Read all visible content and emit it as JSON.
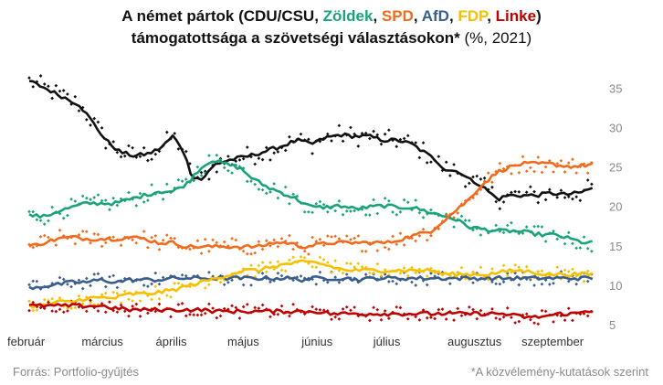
{
  "title": {
    "line1_prefix": "A német pártok (",
    "line1_sep": ", ",
    "line1_suffix": ")",
    "line2_bold": "támogatottsága a szövetségi választásokon*",
    "line2_light": " (%, 2021)",
    "parties": [
      {
        "label": "CDU/CSU",
        "color": "#111111"
      },
      {
        "label": "Zöldek",
        "color": "#1aa37a"
      },
      {
        "label": "SPD",
        "color": "#f26b1d"
      },
      {
        "label": "AfD",
        "color": "#3a5e8c"
      },
      {
        "label": "FDP",
        "color": "#f5c000"
      },
      {
        "label": "Linke",
        "color": "#c00000"
      }
    ]
  },
  "footer": {
    "source": "Forrás: Portfolio-gyűjtés",
    "note": "*A közvélemény-kutatások szerint"
  },
  "chart_data": {
    "type": "line",
    "x_unit": "days since 2021-02-01",
    "xlim": [
      0,
      236
    ],
    "ylim": [
      5,
      37
    ],
    "yticks": [
      5,
      10,
      15,
      20,
      25,
      30,
      35
    ],
    "x_ticks": [
      {
        "label": "február",
        "x": 0
      },
      {
        "label": "március",
        "x": 28
      },
      {
        "label": "április",
        "x": 59
      },
      {
        "label": "május",
        "x": 89
      },
      {
        "label": "június",
        "x": 120
      },
      {
        "label": "július",
        "x": 150
      },
      {
        "label": "augusztus",
        "x": 181
      },
      {
        "label": "szeptember",
        "x": 212
      }
    ],
    "grid": false,
    "series": [
      {
        "name": "CDU/CSU",
        "color": "#111111",
        "points": [
          [
            0,
            36.0
          ],
          [
            6,
            35.2
          ],
          [
            14,
            34.0
          ],
          [
            21,
            33.0
          ],
          [
            26,
            31.0
          ],
          [
            32,
            28.5
          ],
          [
            38,
            27.0
          ],
          [
            44,
            26.5
          ],
          [
            50,
            26.8
          ],
          [
            55,
            27.5
          ],
          [
            60,
            29.0
          ],
          [
            64,
            27.5
          ],
          [
            68,
            24.0
          ],
          [
            72,
            23.5
          ],
          [
            78,
            25.5
          ],
          [
            84,
            26.0
          ],
          [
            92,
            26.5
          ],
          [
            100,
            27.2
          ],
          [
            106,
            27.8
          ],
          [
            112,
            28.5
          ],
          [
            118,
            28.0
          ],
          [
            124,
            28.8
          ],
          [
            130,
            29.2
          ],
          [
            136,
            29.0
          ],
          [
            142,
            29.0
          ],
          [
            148,
            28.5
          ],
          [
            154,
            28.5
          ],
          [
            160,
            28.0
          ],
          [
            164,
            27.2
          ],
          [
            170,
            26.0
          ],
          [
            174,
            24.8
          ],
          [
            180,
            24.5
          ],
          [
            184,
            23.5
          ],
          [
            188,
            23.0
          ],
          [
            192,
            22.0
          ],
          [
            196,
            21.0
          ],
          [
            200,
            21.5
          ],
          [
            206,
            21.5
          ],
          [
            212,
            21.5
          ],
          [
            218,
            21.8
          ],
          [
            224,
            21.6
          ],
          [
            230,
            21.8
          ],
          [
            236,
            22.5
          ]
        ]
      },
      {
        "name": "Zöldek",
        "color": "#1aa37a",
        "points": [
          [
            0,
            19.0
          ],
          [
            6,
            18.8
          ],
          [
            12,
            19.5
          ],
          [
            18,
            20.0
          ],
          [
            24,
            20.5
          ],
          [
            30,
            20.5
          ],
          [
            36,
            20.5
          ],
          [
            42,
            21.0
          ],
          [
            48,
            21.5
          ],
          [
            54,
            22.0
          ],
          [
            60,
            22.0
          ],
          [
            66,
            23.0
          ],
          [
            70,
            24.5
          ],
          [
            76,
            26.0
          ],
          [
            82,
            25.5
          ],
          [
            88,
            25.0
          ],
          [
            94,
            23.5
          ],
          [
            100,
            22.5
          ],
          [
            106,
            21.8
          ],
          [
            112,
            21.0
          ],
          [
            118,
            20.0
          ],
          [
            124,
            20.0
          ],
          [
            130,
            20.2
          ],
          [
            136,
            19.8
          ],
          [
            142,
            20.0
          ],
          [
            148,
            20.2
          ],
          [
            154,
            20.0
          ],
          [
            160,
            20.0
          ],
          [
            166,
            19.5
          ],
          [
            172,
            19.0
          ],
          [
            178,
            18.5
          ],
          [
            184,
            17.5
          ],
          [
            190,
            17.2
          ],
          [
            196,
            17.0
          ],
          [
            202,
            17.0
          ],
          [
            208,
            16.8
          ],
          [
            214,
            16.5
          ],
          [
            220,
            16.5
          ],
          [
            226,
            16.0
          ],
          [
            232,
            15.5
          ],
          [
            236,
            15.5
          ]
        ]
      },
      {
        "name": "SPD",
        "color": "#f26b1d",
        "points": [
          [
            0,
            15.0
          ],
          [
            6,
            15.5
          ],
          [
            12,
            16.0
          ],
          [
            18,
            16.2
          ],
          [
            24,
            16.0
          ],
          [
            30,
            16.0
          ],
          [
            36,
            16.0
          ],
          [
            42,
            16.2
          ],
          [
            48,
            16.0
          ],
          [
            54,
            15.5
          ],
          [
            60,
            15.5
          ],
          [
            66,
            15.0
          ],
          [
            72,
            15.0
          ],
          [
            78,
            15.0
          ],
          [
            84,
            15.0
          ],
          [
            90,
            15.0
          ],
          [
            96,
            15.0
          ],
          [
            102,
            15.5
          ],
          [
            108,
            15.5
          ],
          [
            114,
            15.0
          ],
          [
            120,
            15.2
          ],
          [
            126,
            15.5
          ],
          [
            132,
            15.5
          ],
          [
            138,
            15.5
          ],
          [
            144,
            15.5
          ],
          [
            150,
            15.5
          ],
          [
            156,
            16.0
          ],
          [
            162,
            16.5
          ],
          [
            168,
            17.0
          ],
          [
            172,
            18.0
          ],
          [
            176,
            19.0
          ],
          [
            180,
            20.0
          ],
          [
            184,
            21.0
          ],
          [
            188,
            22.5
          ],
          [
            192,
            23.5
          ],
          [
            196,
            24.5
          ],
          [
            200,
            25.0
          ],
          [
            206,
            25.5
          ],
          [
            212,
            25.5
          ],
          [
            218,
            25.5
          ],
          [
            224,
            25.2
          ],
          [
            230,
            25.2
          ],
          [
            236,
            25.5
          ]
        ]
      },
      {
        "name": "AfD",
        "color": "#3a5e8c",
        "points": [
          [
            0,
            9.8
          ],
          [
            6,
            10.0
          ],
          [
            12,
            10.2
          ],
          [
            18,
            10.5
          ],
          [
            24,
            10.5
          ],
          [
            30,
            10.8
          ],
          [
            36,
            10.5
          ],
          [
            42,
            10.8
          ],
          [
            48,
            10.8
          ],
          [
            54,
            10.8
          ],
          [
            60,
            11.0
          ],
          [
            66,
            11.0
          ],
          [
            72,
            11.0
          ],
          [
            78,
            11.0
          ],
          [
            84,
            11.0
          ],
          [
            90,
            11.0
          ],
          [
            96,
            11.0
          ],
          [
            102,
            11.0
          ],
          [
            108,
            11.0
          ],
          [
            114,
            10.8
          ],
          [
            120,
            11.0
          ],
          [
            126,
            11.0
          ],
          [
            132,
            11.0
          ],
          [
            138,
            10.8
          ],
          [
            144,
            11.0
          ],
          [
            150,
            11.0
          ],
          [
            156,
            11.0
          ],
          [
            162,
            11.0
          ],
          [
            168,
            11.0
          ],
          [
            174,
            11.0
          ],
          [
            180,
            11.0
          ],
          [
            186,
            11.0
          ],
          [
            192,
            11.0
          ],
          [
            198,
            11.0
          ],
          [
            204,
            11.0
          ],
          [
            210,
            11.0
          ],
          [
            216,
            11.0
          ],
          [
            222,
            11.0
          ],
          [
            228,
            11.0
          ],
          [
            236,
            11.0
          ]
        ]
      },
      {
        "name": "FDP",
        "color": "#f5c000",
        "points": [
          [
            0,
            7.5
          ],
          [
            6,
            7.5
          ],
          [
            12,
            8.0
          ],
          [
            18,
            8.0
          ],
          [
            24,
            8.5
          ],
          [
            30,
            8.5
          ],
          [
            36,
            8.5
          ],
          [
            42,
            9.0
          ],
          [
            48,
            9.0
          ],
          [
            54,
            9.2
          ],
          [
            60,
            9.5
          ],
          [
            66,
            10.0
          ],
          [
            72,
            10.5
          ],
          [
            78,
            11.0
          ],
          [
            84,
            11.5
          ],
          [
            90,
            12.0
          ],
          [
            96,
            12.0
          ],
          [
            102,
            12.5
          ],
          [
            108,
            12.8
          ],
          [
            114,
            13.0
          ],
          [
            120,
            13.0
          ],
          [
            126,
            12.5
          ],
          [
            132,
            12.0
          ],
          [
            138,
            12.0
          ],
          [
            144,
            12.0
          ],
          [
            150,
            12.0
          ],
          [
            156,
            12.0
          ],
          [
            162,
            12.0
          ],
          [
            168,
            12.0
          ],
          [
            174,
            11.5
          ],
          [
            180,
            11.5
          ],
          [
            186,
            11.5
          ],
          [
            192,
            11.5
          ],
          [
            198,
            11.8
          ],
          [
            204,
            12.0
          ],
          [
            210,
            11.8
          ],
          [
            216,
            11.5
          ],
          [
            222,
            11.5
          ],
          [
            228,
            11.5
          ],
          [
            236,
            11.5
          ]
        ]
      },
      {
        "name": "Linke",
        "color": "#c00000",
        "points": [
          [
            0,
            7.5
          ],
          [
            6,
            7.5
          ],
          [
            12,
            7.5
          ],
          [
            18,
            7.5
          ],
          [
            24,
            7.5
          ],
          [
            30,
            7.5
          ],
          [
            36,
            7.2
          ],
          [
            42,
            7.0
          ],
          [
            48,
            7.0
          ],
          [
            54,
            7.0
          ],
          [
            60,
            7.0
          ],
          [
            66,
            7.0
          ],
          [
            72,
            7.0
          ],
          [
            78,
            6.8
          ],
          [
            84,
            6.8
          ],
          [
            90,
            6.8
          ],
          [
            96,
            6.8
          ],
          [
            102,
            6.8
          ],
          [
            108,
            6.8
          ],
          [
            114,
            6.8
          ],
          [
            120,
            6.8
          ],
          [
            126,
            6.5
          ],
          [
            132,
            6.5
          ],
          [
            138,
            6.5
          ],
          [
            144,
            6.5
          ],
          [
            150,
            6.5
          ],
          [
            156,
            6.5
          ],
          [
            162,
            6.5
          ],
          [
            168,
            6.5
          ],
          [
            174,
            6.5
          ],
          [
            180,
            6.5
          ],
          [
            186,
            6.5
          ],
          [
            192,
            6.5
          ],
          [
            198,
            6.5
          ],
          [
            204,
            6.2
          ],
          [
            210,
            6.0
          ],
          [
            216,
            6.2
          ],
          [
            222,
            6.5
          ],
          [
            228,
            6.5
          ],
          [
            236,
            7.0
          ]
        ]
      }
    ]
  }
}
